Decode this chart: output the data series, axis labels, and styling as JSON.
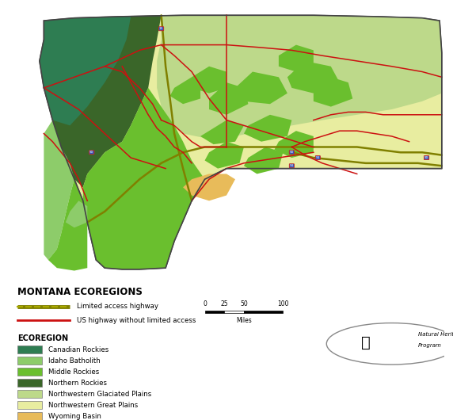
{
  "title": "MONTANA ECOREGIONS",
  "background_color": "#ffffff",
  "ecoregions": [
    {
      "name": "Canadian Rockies",
      "color": "#2e7d52"
    },
    {
      "name": "Idaho Batholith",
      "color": "#8dcc6a"
    },
    {
      "name": "Middle Rockies",
      "color": "#6abf2e"
    },
    {
      "name": "Northern Rockies",
      "color": "#3a6629"
    },
    {
      "name": "Northwestern Glaciated Plains",
      "color": "#bdd98a"
    },
    {
      "name": "Northwestern Great Plains",
      "color": "#e8eda0"
    },
    {
      "name": "Wyoming Basin",
      "color": "#e8bb5a"
    }
  ],
  "highway_color": "#808000",
  "us_highway_color": "#cc1111",
  "map_outer_bg": "#f0ede0",
  "legend_highway_name1": "Limited access highway",
  "legend_highway_name2": "US highway without limited access",
  "legend_ecoregion_label": "ECOREGION",
  "scalebar_ticks": [
    "0",
    "25",
    "50",
    "100"
  ],
  "scalebar_label": "Miles"
}
